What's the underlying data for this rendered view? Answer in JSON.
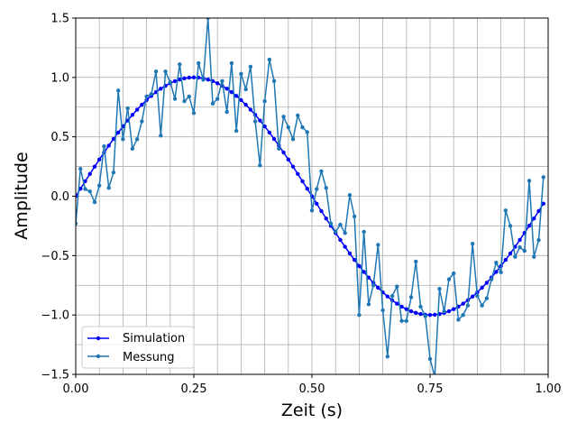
{
  "chart_data": {
    "type": "line",
    "title": "",
    "xlabel": "Zeit (s)",
    "ylabel": "Amplitude",
    "xlim": [
      0,
      1
    ],
    "ylim": [
      -1.5,
      1.5
    ],
    "grid": true,
    "legend_position": "lower-left",
    "x_tick_labels": [
      "0.00",
      "0.25",
      "0.50",
      "0.75",
      "1.00"
    ],
    "y_tick_labels": [
      "−1.5",
      "−1.0",
      "−0.5",
      "0.0",
      "0.5",
      "1.0",
      "1.5"
    ],
    "series": [
      {
        "name": "Simulation",
        "color": "#0000ff",
        "x_start": 0,
        "x_step": 0.01,
        "count": 100,
        "function": "sin(2*pi*t)"
      },
      {
        "name": "Messung",
        "color": "#1f77b4",
        "x_start": 0,
        "x_step": 0.01,
        "values": [
          -0.23,
          0.23,
          0.06,
          0.04,
          -0.05,
          0.09,
          0.42,
          0.07,
          0.2,
          0.89,
          0.48,
          0.74,
          0.4,
          0.48,
          0.63,
          0.84,
          0.86,
          1.05,
          0.51,
          1.05,
          0.96,
          0.82,
          1.11,
          0.8,
          0.84,
          0.7,
          1.12,
          0.98,
          1.5,
          0.78,
          0.82,
          0.97,
          0.71,
          1.12,
          0.55,
          1.03,
          0.9,
          1.09,
          0.63,
          0.26,
          0.8,
          1.15,
          0.97,
          0.4,
          0.67,
          0.58,
          0.48,
          0.68,
          0.58,
          0.54,
          -0.12,
          0.06,
          0.21,
          0.07,
          -0.23,
          -0.3,
          -0.24,
          -0.31,
          0.01,
          -0.17,
          -1.0,
          -0.3,
          -0.91,
          -0.75,
          -0.41,
          -0.96,
          -1.35,
          -0.84,
          -0.76,
          -1.05,
          -1.05,
          -0.85,
          -0.55,
          -0.93,
          -1.01,
          -1.37,
          -1.52,
          -0.78,
          -0.97,
          -0.7,
          -0.65,
          -1.04,
          -1.0,
          -0.92,
          -0.4,
          -0.84,
          -0.92,
          -0.86,
          -0.7,
          -0.56,
          -0.64,
          -0.12,
          -0.25,
          -0.51,
          -0.43,
          -0.46,
          0.13,
          -0.51,
          -0.37,
          0.16
        ]
      }
    ]
  }
}
